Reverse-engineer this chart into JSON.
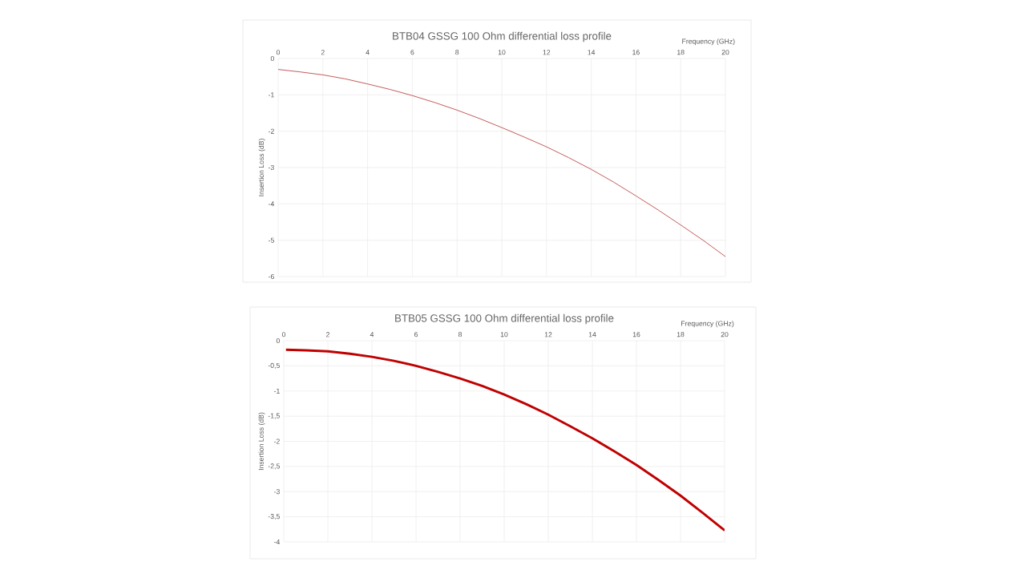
{
  "chart_data": [
    {
      "type": "line",
      "title": "BTB04 GSSG 100 Ohm differential loss profile",
      "xlabel": "Frequency (GHz)",
      "ylabel": "Insertion Loss (dB)",
      "x": [
        0,
        1,
        2,
        3,
        4,
        5,
        6,
        7,
        8,
        9,
        10,
        11,
        12,
        13,
        14,
        15,
        16,
        17,
        18,
        19,
        20
      ],
      "series": [
        {
          "color": "#c0504d",
          "values": [
            -0.3,
            -0.37,
            -0.45,
            -0.56,
            -0.7,
            -0.85,
            -1.02,
            -1.21,
            -1.42,
            -1.65,
            -1.9,
            -2.16,
            -2.43,
            -2.73,
            -3.05,
            -3.4,
            -3.78,
            -4.17,
            -4.58,
            -5.0,
            -5.45
          ]
        }
      ],
      "xlim": [
        0,
        20
      ],
      "xticks": [
        0,
        2,
        4,
        6,
        8,
        10,
        12,
        14,
        16,
        18,
        20
      ],
      "ylim": [
        -6,
        0
      ],
      "yticks": [
        -6,
        -5,
        -4,
        -3,
        -2,
        -1,
        0
      ],
      "grid": true,
      "marker": "none",
      "line_style": "solid"
    },
    {
      "type": "line",
      "title": "BTB05 GSSG 100 Ohm differential loss profile",
      "xlabel": "Frequency (GHz)",
      "ylabel": "Insertion Loss (dB)",
      "x": [
        0.1,
        1,
        2,
        3,
        4,
        5,
        6,
        7,
        8,
        9,
        10,
        11,
        12,
        13,
        14,
        15,
        16,
        17,
        18,
        19,
        20
      ],
      "series": [
        {
          "color": "#c00000",
          "values": [
            -0.18,
            -0.19,
            -0.21,
            -0.26,
            -0.32,
            -0.4,
            -0.5,
            -0.62,
            -0.75,
            -0.9,
            -1.07,
            -1.26,
            -1.47,
            -1.7,
            -1.94,
            -2.2,
            -2.47,
            -2.77,
            -3.08,
            -3.42,
            -3.77
          ]
        }
      ],
      "xlim": [
        0,
        20
      ],
      "xticks": [
        0,
        2,
        4,
        6,
        8,
        10,
        12,
        14,
        16,
        18,
        20
      ],
      "ylim": [
        -4,
        0
      ],
      "yticks": [
        {
          "value": -4,
          "label": "-4"
        },
        {
          "value": -3.5,
          "label": "-3,5"
        },
        {
          "value": -3,
          "label": "-3"
        },
        {
          "value": -2.5,
          "label": "-2,5"
        },
        {
          "value": -2,
          "label": "-2"
        },
        {
          "value": -1.5,
          "label": "-1,5"
        },
        {
          "value": -1,
          "label": "-1"
        },
        {
          "value": -0.5,
          "label": "-0,5"
        },
        {
          "value": 0,
          "label": "0"
        }
      ],
      "grid": true,
      "marker": "none",
      "line_style": "solid"
    }
  ]
}
